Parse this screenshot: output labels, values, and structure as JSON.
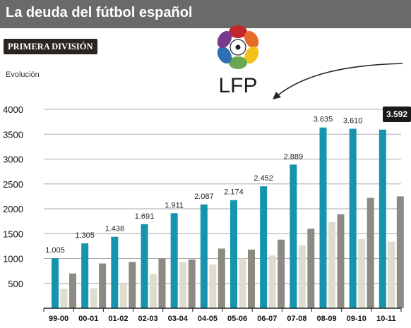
{
  "header": {
    "title": "La deuda del fútbol español",
    "tag": "PRIMERA DIVISIÓN"
  },
  "logo": {
    "text": "LFP"
  },
  "chart_data": {
    "type": "bar",
    "ylabel": "Evolución",
    "ylim": [
      0,
      4000
    ],
    "yticks": [
      500,
      1000,
      1500,
      2000,
      2500,
      3000,
      3500,
      4000
    ],
    "grid": true,
    "categories": [
      "99-00",
      "00-01",
      "01-02",
      "02-03",
      "03-04",
      "04-05",
      "05-06",
      "06-07",
      "07-08",
      "08-09",
      "09-10",
      "10-11"
    ],
    "series": [
      {
        "color": "#1495ad",
        "values": [
          1005,
          1305,
          1438,
          1691,
          1911,
          2087,
          2174,
          2452,
          2889,
          3635,
          3610,
          3592
        ]
      },
      {
        "color": "#dedbcf",
        "values": [
          390,
          400,
          500,
          690,
          930,
          880,
          1000,
          1060,
          1270,
          1730,
          1390,
          1340
        ]
      },
      {
        "color": "#8c8a82",
        "values": [
          700,
          900,
          930,
          1000,
          980,
          1200,
          1180,
          1380,
          1600,
          1890,
          2220,
          2250
        ]
      }
    ],
    "data_labels": [
      "1.005",
      "1.305",
      "1.438",
      "1.691",
      "1.911",
      "2.087",
      "2.174",
      "2.452",
      "2.889",
      "3.635",
      "3.610"
    ],
    "callout": "3.592"
  }
}
